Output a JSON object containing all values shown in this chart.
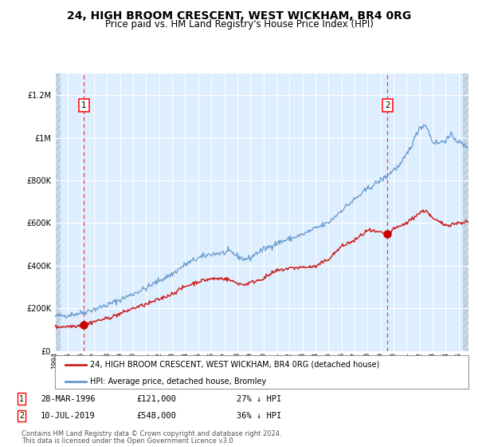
{
  "title": "24, HIGH BROOM CRESCENT, WEST WICKHAM, BR4 0RG",
  "subtitle": "Price paid vs. HM Land Registry's House Price Index (HPI)",
  "title_fontsize": 10,
  "subtitle_fontsize": 8.5,
  "background_plot": "#ddeeff",
  "grid_color": "#ffffff",
  "ylim": [
    0,
    1300000
  ],
  "yticks": [
    0,
    200000,
    400000,
    600000,
    800000,
    1000000,
    1200000
  ],
  "ytick_labels": [
    "£0",
    "£200K",
    "£400K",
    "£600K",
    "£800K",
    "£1M",
    "£1.2M"
  ],
  "hpi_color": "#6699cc",
  "price_color": "#cc2222",
  "dot_color": "#cc0000",
  "sale1_date": "28-MAR-1996",
  "sale1_price": 121000,
  "sale1_year": 1996.22,
  "sale2_date": "10-JUL-2019",
  "sale2_price": 548000,
  "sale2_year": 2019.53,
  "legend_line1": "24, HIGH BROOM CRESCENT, WEST WICKHAM, BR4 0RG (detached house)",
  "legend_line2": "HPI: Average price, detached house, Bromley",
  "footer_line1": "Contains HM Land Registry data © Crown copyright and database right 2024.",
  "footer_line2": "This data is licensed under the Open Government Licence v3.0.",
  "xmin": 1994.0,
  "xmax": 2025.75,
  "hpi_anchors_x": [
    1994,
    1995,
    1996,
    1997,
    1998,
    1999,
    2000,
    2001,
    2002,
    2003,
    2004,
    2005,
    2006,
    2007,
    2007.5,
    2008,
    2008.5,
    2009,
    2009.5,
    2010,
    2011,
    2012,
    2013,
    2014,
    2015,
    2016,
    2017,
    2018,
    2019,
    2019.5,
    2020,
    2020.5,
    2021,
    2021.5,
    2022,
    2022.5,
    2023,
    2023.5,
    2024,
    2024.5,
    2025,
    2025.5
  ],
  "hpi_anchors_y": [
    162000,
    168000,
    178000,
    195000,
    215000,
    240000,
    268000,
    295000,
    330000,
    360000,
    405000,
    435000,
    455000,
    460000,
    465000,
    445000,
    430000,
    435000,
    460000,
    475000,
    505000,
    525000,
    545000,
    575000,
    600000,
    660000,
    710000,
    760000,
    800000,
    820000,
    850000,
    870000,
    920000,
    980000,
    1050000,
    1060000,
    980000,
    975000,
    990000,
    1010000,
    980000,
    960000
  ],
  "price_anchors_x": [
    1994,
    1995,
    1996.22,
    1997,
    1998,
    1999,
    2000,
    2001,
    2002,
    2003,
    2004,
    2005,
    2006,
    2007,
    2007.5,
    2008,
    2008.5,
    2009,
    2010,
    2011,
    2012,
    2013,
    2014,
    2015,
    2016,
    2017,
    2018,
    2019.53,
    2020,
    2021,
    2022,
    2022.5,
    2023,
    2024,
    2025,
    2025.5
  ],
  "price_anchors_y": [
    112000,
    115000,
    121000,
    138000,
    152000,
    174000,
    200000,
    218000,
    242000,
    268000,
    302000,
    325000,
    338000,
    340000,
    330000,
    318000,
    310000,
    320000,
    340000,
    375000,
    388000,
    392000,
    395000,
    430000,
    490000,
    518000,
    565000,
    548000,
    570000,
    600000,
    648000,
    660000,
    620000,
    590000,
    600000,
    605000
  ]
}
